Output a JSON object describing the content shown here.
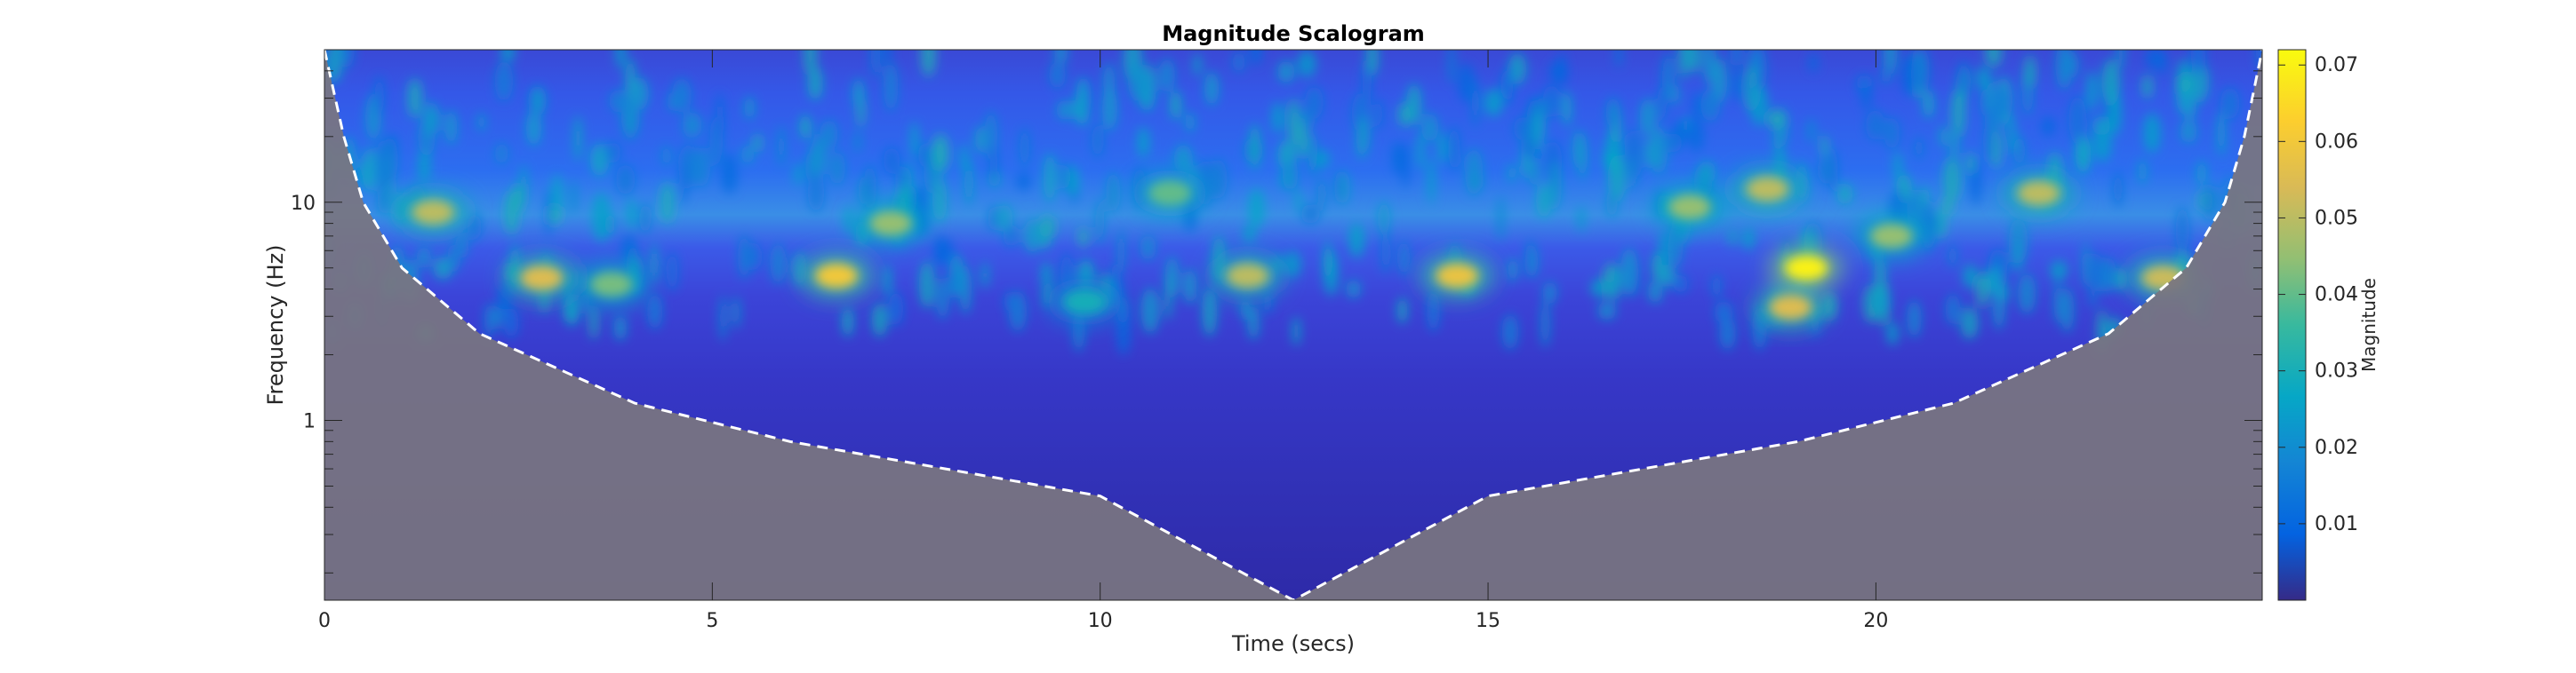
{
  "chart_data": {
    "type": "heatmap",
    "title": "Magnitude Scalogram",
    "xlabel": "Time (secs)",
    "ylabel": "Frequency (Hz)",
    "xlim": [
      0,
      24.98
    ],
    "ylim": [
      0.15,
      50
    ],
    "y_scale": "log",
    "x_ticks": [
      0,
      5,
      10,
      15,
      20
    ],
    "x_tick_labels": [
      "0",
      "5",
      "10",
      "15",
      "20"
    ],
    "y_ticks": [
      1,
      10
    ],
    "y_tick_labels": [
      "1",
      "10"
    ],
    "colorbar": {
      "label": "Magnitude",
      "range": [
        0,
        0.072
      ],
      "ticks": [
        0.01,
        0.02,
        0.03,
        0.04,
        0.05,
        0.06,
        0.07
      ],
      "tick_labels": [
        "0.01",
        "0.02",
        "0.03",
        "0.04",
        "0.05",
        "0.06",
        "0.07"
      ],
      "colormap": "parula"
    },
    "cone_of_influence": {
      "style": "white dashed line, region outside shaded gray",
      "points": [
        {
          "t": 0.0,
          "f": 50
        },
        {
          "t": 0.25,
          "f": 20
        },
        {
          "t": 0.5,
          "f": 10
        },
        {
          "t": 1.0,
          "f": 5
        },
        {
          "t": 2.0,
          "f": 2.5
        },
        {
          "t": 4.0,
          "f": 1.2
        },
        {
          "t": 6.0,
          "f": 0.8
        },
        {
          "t": 8.0,
          "f": 0.6
        },
        {
          "t": 10.0,
          "f": 0.45
        },
        {
          "t": 12.49,
          "f": 0.15
        },
        {
          "t": 15.0,
          "f": 0.45
        },
        {
          "t": 17.0,
          "f": 0.6
        },
        {
          "t": 19.0,
          "f": 0.8
        },
        {
          "t": 21.0,
          "f": 1.2
        },
        {
          "t": 23.0,
          "f": 2.5
        },
        {
          "t": 24.0,
          "f": 5
        },
        {
          "t": 24.5,
          "f": 10
        },
        {
          "t": 24.75,
          "f": 20
        },
        {
          "t": 24.98,
          "f": 50
        }
      ]
    },
    "hotspots": [
      {
        "t": 1.4,
        "f": 9.0,
        "magnitude": 0.05
      },
      {
        "t": 2.8,
        "f": 4.5,
        "magnitude": 0.055
      },
      {
        "t": 3.7,
        "f": 4.2,
        "magnitude": 0.042
      },
      {
        "t": 6.6,
        "f": 4.6,
        "magnitude": 0.06
      },
      {
        "t": 7.3,
        "f": 8.0,
        "magnitude": 0.045
      },
      {
        "t": 9.8,
        "f": 3.5,
        "magnitude": 0.03
      },
      {
        "t": 10.9,
        "f": 11.0,
        "magnitude": 0.04
      },
      {
        "t": 11.9,
        "f": 4.6,
        "magnitude": 0.05
      },
      {
        "t": 14.6,
        "f": 4.6,
        "magnitude": 0.058
      },
      {
        "t": 17.6,
        "f": 9.5,
        "magnitude": 0.045
      },
      {
        "t": 18.6,
        "f": 11.5,
        "magnitude": 0.05
      },
      {
        "t": 19.1,
        "f": 5.0,
        "magnitude": 0.07
      },
      {
        "t": 18.9,
        "f": 3.3,
        "magnitude": 0.055
      },
      {
        "t": 20.2,
        "f": 7.0,
        "magnitude": 0.045
      },
      {
        "t": 22.1,
        "f": 11.0,
        "magnitude": 0.05
      },
      {
        "t": 23.7,
        "f": 4.5,
        "magnitude": 0.052
      }
    ],
    "grid": false
  }
}
